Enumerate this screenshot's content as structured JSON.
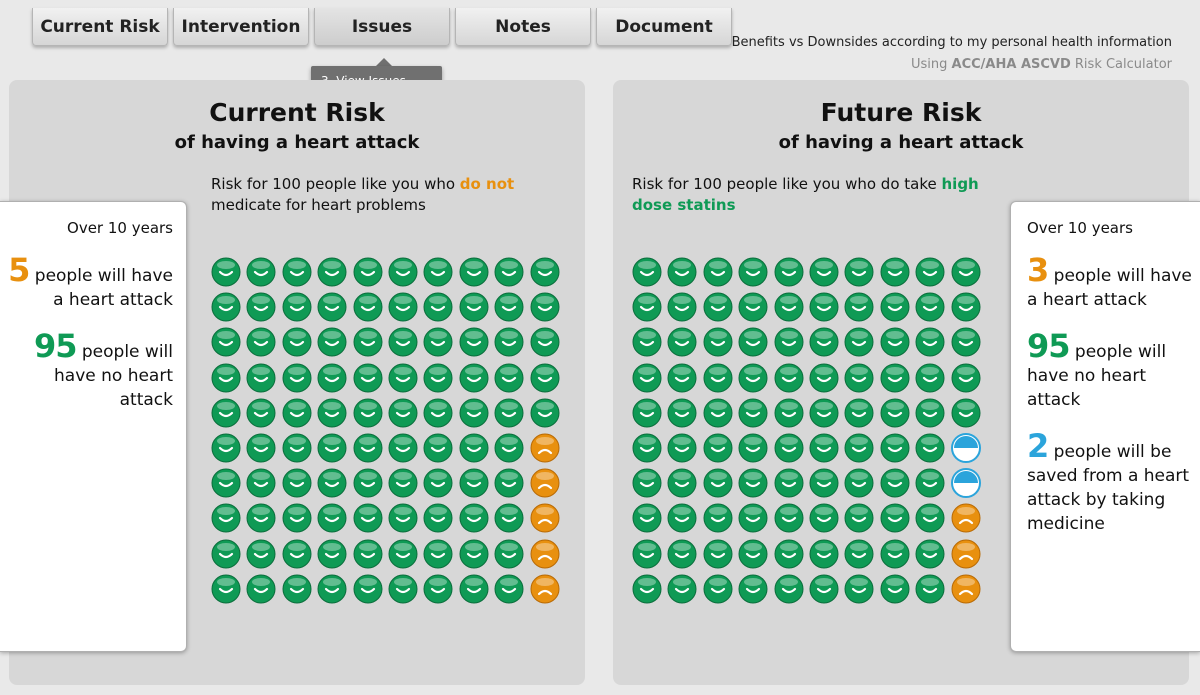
{
  "tabs": [
    {
      "label": "Current Risk",
      "active": false
    },
    {
      "label": "Intervention",
      "active": false
    },
    {
      "label": "Issues",
      "active": true
    },
    {
      "label": "Notes",
      "active": false
    },
    {
      "label": "Document",
      "active": false
    }
  ],
  "tooltip": "3. View Issues",
  "header": {
    "line1": "Benefits vs Downsides according to my personal health information",
    "line2_prefix": "Using ",
    "line2_bold": "ACC/AHA ASCVD",
    "line2_suffix": " Risk Calculator"
  },
  "colors": {
    "orange": "#e8900f",
    "green": "#0f9a55",
    "blue": "#2ba4db"
  },
  "current": {
    "title": "Current Risk",
    "subtitle": "of having a heart attack",
    "desc_prefix": "Risk for 100 people like you who ",
    "desc_highlight": "do not",
    "desc_suffix": " medicate for heart problems",
    "years": "Over 10 years",
    "stat1_num": "5",
    "stat1_text": " people will have a heart attack",
    "stat2_num": "95",
    "stat2_text": " people will have no heart attack",
    "counts": {
      "happy_green": 95,
      "sad_orange": 5
    }
  },
  "future": {
    "title": "Future Risk",
    "subtitle": "of having a heart attack",
    "desc_prefix": "Risk for 100 people like you who do take ",
    "desc_highlight": "high dose statins",
    "years": "Over 10 years",
    "stat1_num": "3",
    "stat1_text": " people will have a heart attack",
    "stat2_num": "95",
    "stat2_text": " people will have no heart attack",
    "stat3_num": "2",
    "stat3_text": " people will be saved from a heart attack by taking medicine",
    "counts": {
      "happy_green": 95,
      "saved_blue": 2,
      "sad_orange": 3
    }
  }
}
